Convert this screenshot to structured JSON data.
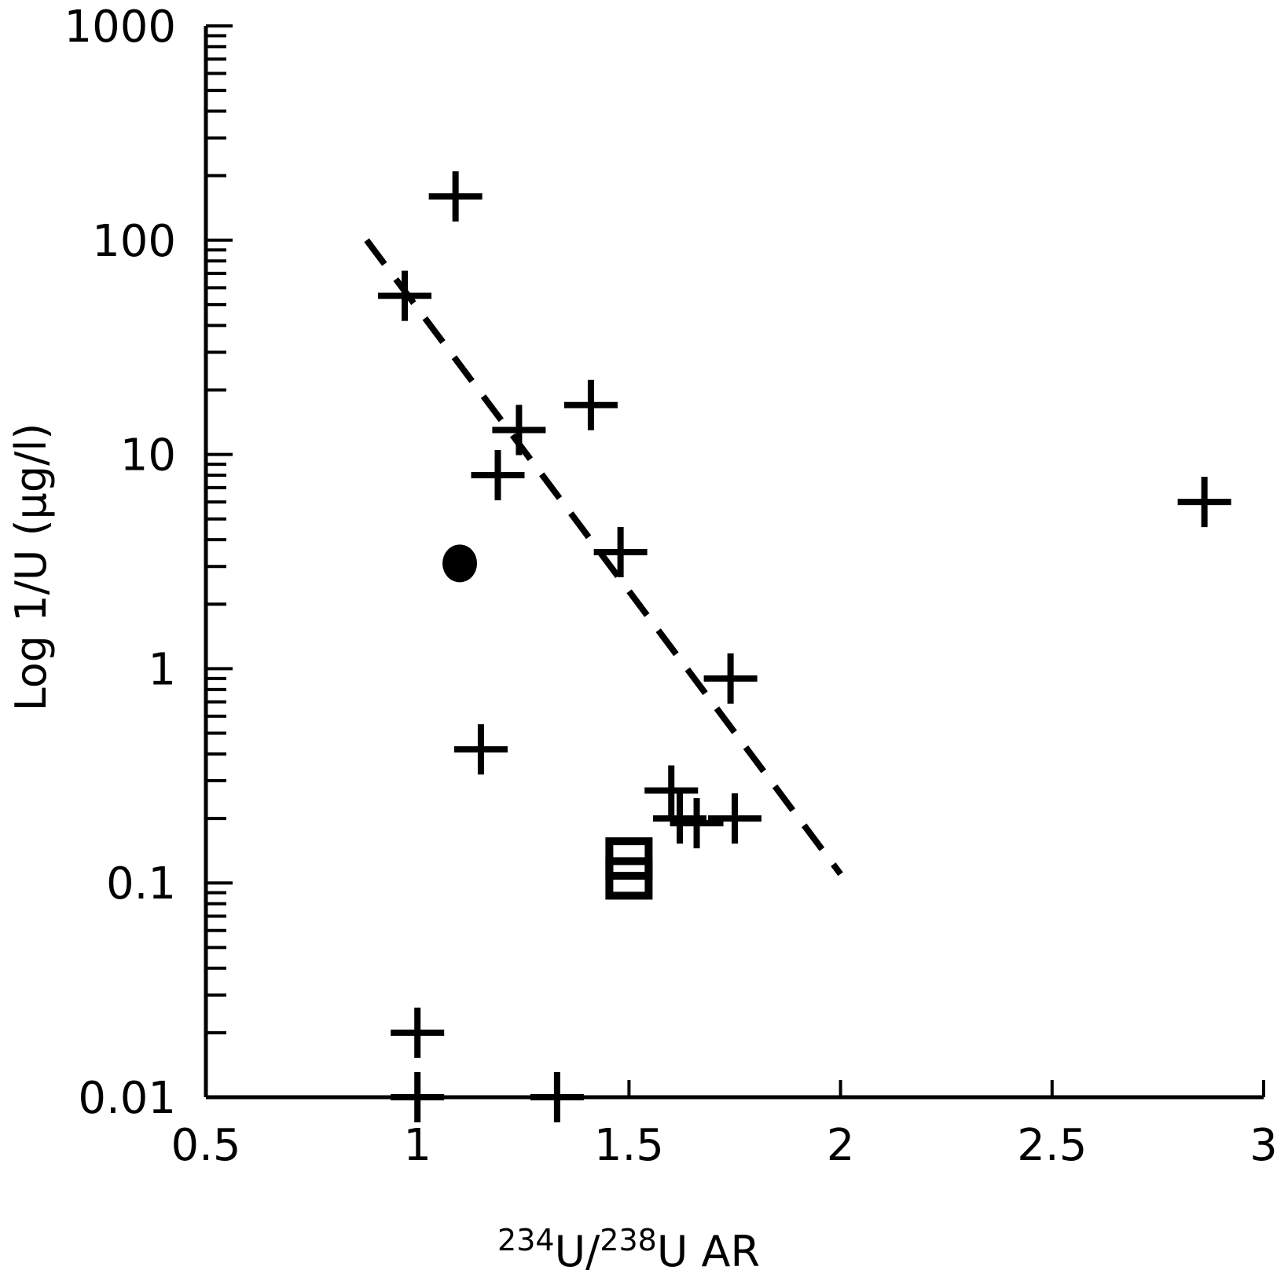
{
  "chart_data": {
    "type": "scatter",
    "title": "",
    "xlabel": {
      "sup1": "234",
      "mid1": "U/",
      "sup2": "238",
      "mid2": "U  AR"
    },
    "ylabel": "Log 1/U (µg/l)",
    "xlim": [
      0.5,
      3
    ],
    "ylim": [
      0.01,
      1000
    ],
    "xscale": "linear",
    "yscale": "log",
    "x_ticks": [
      "0.5",
      "1",
      "1.5",
      "2",
      "2.5",
      "3"
    ],
    "y_ticks": [
      "0.01",
      "0.1",
      "1",
      "10",
      "100",
      "1000"
    ],
    "grid": false,
    "legend": "none",
    "color": "#000000",
    "series": [
      {
        "marker": "plus",
        "points": [
          {
            "x": 1.09,
            "y": 160
          },
          {
            "x": 0.97,
            "y": 55
          },
          {
            "x": 1.41,
            "y": 17
          },
          {
            "x": 1.24,
            "y": 13
          },
          {
            "x": 1.19,
            "y": 8
          },
          {
            "x": 2.86,
            "y": 6
          },
          {
            "x": 1.48,
            "y": 3.5
          },
          {
            "x": 1.74,
            "y": 0.9
          },
          {
            "x": 1.15,
            "y": 0.42
          },
          {
            "x": 1.6,
            "y": 0.27
          },
          {
            "x": 1.62,
            "y": 0.2
          },
          {
            "x": 1.66,
            "y": 0.19
          },
          {
            "x": 1.75,
            "y": 0.2
          },
          {
            "x": 1.0,
            "y": 0.02
          },
          {
            "x": 1.0,
            "y": 0.01
          },
          {
            "x": 1.33,
            "y": 0.01
          }
        ]
      },
      {
        "marker": "circle",
        "points": [
          {
            "x": 1.1,
            "y": 3.1
          }
        ]
      },
      {
        "marker": "square",
        "points": [
          {
            "x": 1.5,
            "y": 0.13
          },
          {
            "x": 1.5,
            "y": 0.105
          }
        ]
      }
    ],
    "trendline": {
      "style": "dashed",
      "start": {
        "x": 0.88,
        "y": 100
      },
      "end": {
        "x": 2.0,
        "y": 0.11
      }
    }
  }
}
